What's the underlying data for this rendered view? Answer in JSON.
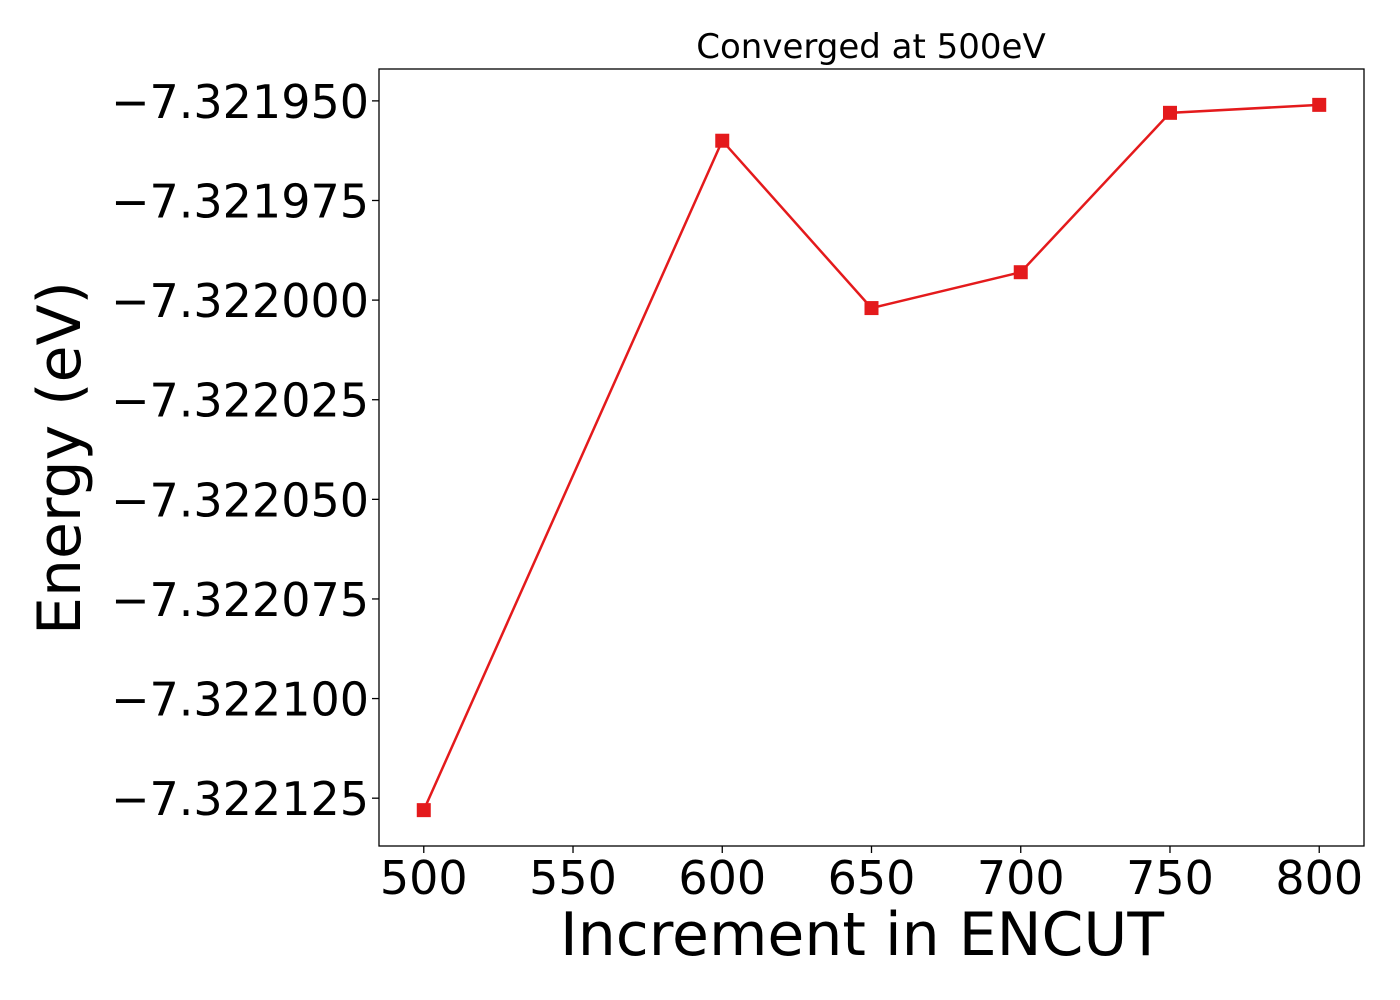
{
  "chart_data": {
    "type": "line",
    "title": "Converged at 500eV",
    "xlabel": "Increment in ENCUT",
    "ylabel": "Energy (eV)",
    "x": [
      500,
      600,
      650,
      700,
      750,
      800
    ],
    "series": [
      {
        "values": [
          -7.322128,
          -7.32196,
          -7.322002,
          -7.321993,
          -7.321953,
          -7.321951
        ],
        "color": "#e41a1c",
        "marker": "square"
      }
    ],
    "xticks": [
      500,
      550,
      600,
      650,
      700,
      750,
      800
    ],
    "xtick_labels": [
      "500",
      "550",
      "600",
      "650",
      "700",
      "750",
      "800"
    ],
    "yticks": [
      -7.32195,
      -7.321975,
      -7.322,
      -7.322025,
      -7.32205,
      -7.322075,
      -7.3221,
      -7.322125
    ],
    "ytick_labels": [
      "−7.321950",
      "−7.321975",
      "−7.322000",
      "−7.322025",
      "−7.322050",
      "−7.322075",
      "−7.322100",
      "−7.322125"
    ],
    "xlim": [
      485,
      815
    ],
    "ylim": [
      -7.322137,
      -7.321942
    ],
    "grid": false,
    "legend": "none"
  }
}
